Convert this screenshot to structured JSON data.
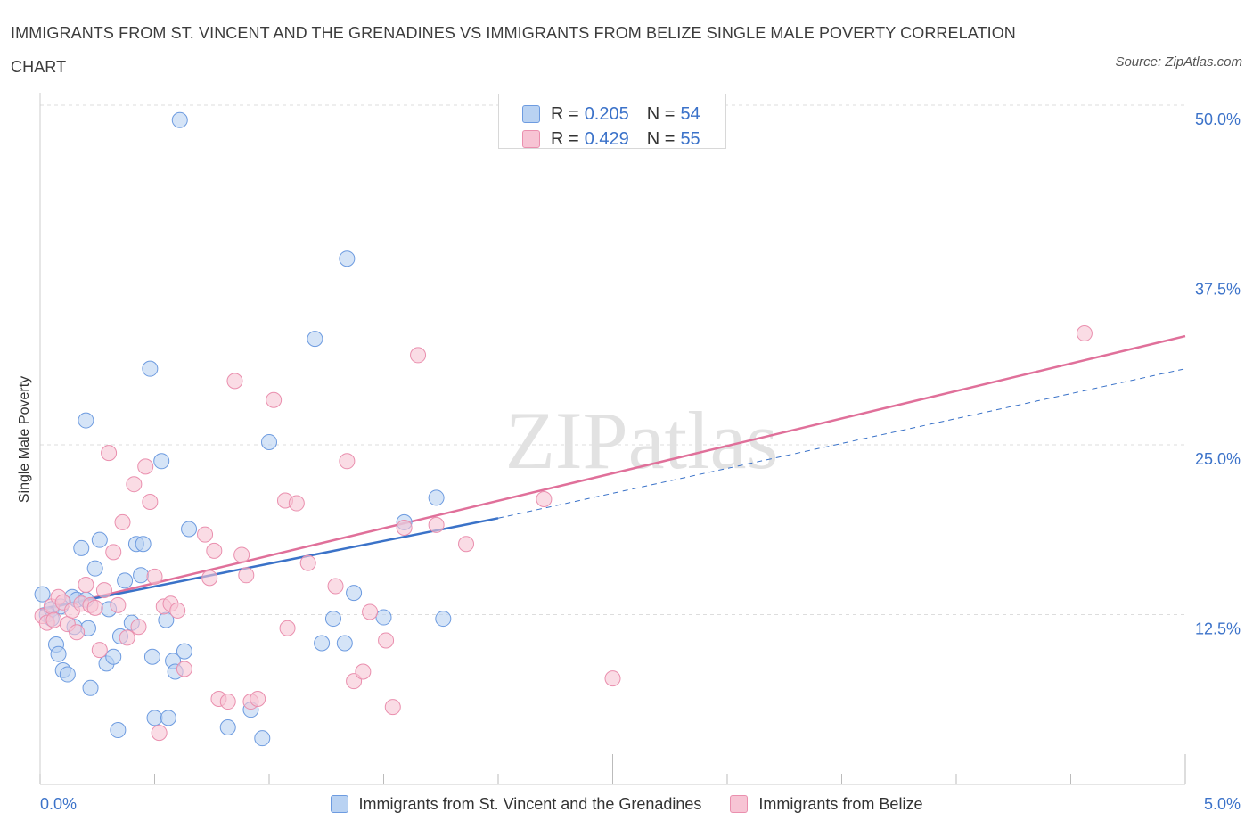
{
  "title": "IMMIGRANTS FROM ST. VINCENT AND THE GRENADINES VS IMMIGRANTS FROM BELIZE SINGLE MALE POVERTY CORRELATION CHART",
  "source": "Source: ZipAtlas.com",
  "watermark": "ZIPatlas",
  "legend_stats": {
    "blue": {
      "r_label": "R =",
      "r_value": "0.205",
      "n_label": "N =",
      "n_value": "54"
    },
    "pink": {
      "r_label": "R =",
      "r_value": "0.429",
      "n_label": "N =",
      "n_value": "55"
    }
  },
  "colors": {
    "blue_fill": "#b9d2f2",
    "blue_stroke": "#6d9be0",
    "blue_line": "#3a72c8",
    "pink_fill": "#f7c4d4",
    "pink_stroke": "#ea8fae",
    "pink_line": "#e0709a",
    "axis_text": "#3b72c9",
    "grid": "#dddddd"
  },
  "chart_data": {
    "type": "scatter",
    "title": "IMMIGRANTS FROM ST. VINCENT AND THE GRENADINES VS IMMIGRANTS FROM BELIZE SINGLE MALE POVERTY CORRELATION CHART",
    "xlabel": "",
    "ylabel": "Single Male Poverty",
    "xlim": [
      0,
      5
    ],
    "ylim": [
      0,
      50
    ],
    "x_tick_labels": [
      "0.0%",
      "5.0%"
    ],
    "y_ticks": [
      12.5,
      25,
      37.5,
      50
    ],
    "y_tick_labels": [
      "12.5%",
      "25.0%",
      "37.5%",
      "50.0%"
    ],
    "grid": "horizontal dashed",
    "legend_position": "bottom",
    "series": [
      {
        "name": "Immigrants from St. Vincent and the Grenadines",
        "color": "blue",
        "points": [
          [
            0.01,
            14.0
          ],
          [
            0.03,
            12.5
          ],
          [
            0.05,
            12.9
          ],
          [
            0.07,
            10.3
          ],
          [
            0.08,
            9.6
          ],
          [
            0.1,
            8.4
          ],
          [
            0.12,
            8.1
          ],
          [
            0.14,
            13.8
          ],
          [
            0.16,
            13.6
          ],
          [
            0.18,
            17.4
          ],
          [
            0.2,
            13.6
          ],
          [
            0.2,
            26.8
          ],
          [
            0.21,
            11.5
          ],
          [
            0.22,
            7.1
          ],
          [
            0.24,
            15.9
          ],
          [
            0.26,
            18.0
          ],
          [
            0.29,
            8.9
          ],
          [
            0.3,
            12.9
          ],
          [
            0.32,
            9.4
          ],
          [
            0.34,
            4.0
          ],
          [
            0.35,
            10.9
          ],
          [
            0.37,
            15.0
          ],
          [
            0.4,
            11.9
          ],
          [
            0.42,
            17.7
          ],
          [
            0.44,
            15.4
          ],
          [
            0.45,
            17.7
          ],
          [
            0.48,
            30.6
          ],
          [
            0.49,
            9.4
          ],
          [
            0.5,
            4.9
          ],
          [
            0.53,
            23.8
          ],
          [
            0.55,
            12.1
          ],
          [
            0.56,
            4.9
          ],
          [
            0.58,
            9.1
          ],
          [
            0.59,
            8.3
          ],
          [
            0.61,
            48.9
          ],
          [
            0.63,
            9.8
          ],
          [
            0.65,
            18.8
          ],
          [
            0.82,
            4.2
          ],
          [
            0.92,
            5.5
          ],
          [
            0.97,
            3.4
          ],
          [
            1.0,
            25.2
          ],
          [
            1.2,
            32.8
          ],
          [
            1.23,
            10.4
          ],
          [
            1.28,
            12.2
          ],
          [
            1.33,
            10.4
          ],
          [
            1.34,
            38.7
          ],
          [
            1.37,
            14.1
          ],
          [
            1.5,
            12.3
          ],
          [
            1.59,
            19.3
          ],
          [
            1.73,
            21.1
          ],
          [
            1.76,
            12.2
          ],
          [
            0.05,
            12.2
          ],
          [
            0.09,
            13.1
          ],
          [
            0.15,
            11.6
          ]
        ]
      },
      {
        "name": "Immigrants from Belize",
        "color": "pink",
        "points": [
          [
            0.01,
            12.4
          ],
          [
            0.03,
            11.9
          ],
          [
            0.05,
            13.1
          ],
          [
            0.06,
            12.1
          ],
          [
            0.08,
            13.8
          ],
          [
            0.1,
            13.4
          ],
          [
            0.12,
            11.8
          ],
          [
            0.14,
            12.8
          ],
          [
            0.16,
            11.2
          ],
          [
            0.18,
            13.3
          ],
          [
            0.2,
            14.7
          ],
          [
            0.22,
            13.2
          ],
          [
            0.24,
            13.0
          ],
          [
            0.26,
            9.9
          ],
          [
            0.28,
            14.3
          ],
          [
            0.3,
            24.4
          ],
          [
            0.32,
            17.1
          ],
          [
            0.34,
            13.2
          ],
          [
            0.36,
            19.3
          ],
          [
            0.38,
            10.8
          ],
          [
            0.41,
            22.1
          ],
          [
            0.43,
            11.6
          ],
          [
            0.46,
            23.4
          ],
          [
            0.48,
            20.8
          ],
          [
            0.5,
            15.3
          ],
          [
            0.52,
            3.8
          ],
          [
            0.54,
            13.1
          ],
          [
            0.57,
            13.3
          ],
          [
            0.6,
            12.8
          ],
          [
            0.63,
            8.5
          ],
          [
            0.72,
            18.4
          ],
          [
            0.74,
            15.2
          ],
          [
            0.76,
            17.2
          ],
          [
            0.78,
            6.3
          ],
          [
            0.82,
            6.1
          ],
          [
            0.85,
            29.7
          ],
          [
            0.88,
            16.9
          ],
          [
            0.9,
            15.4
          ],
          [
            0.92,
            6.1
          ],
          [
            0.95,
            6.3
          ],
          [
            1.02,
            28.3
          ],
          [
            1.07,
            20.9
          ],
          [
            1.08,
            11.5
          ],
          [
            1.12,
            20.7
          ],
          [
            1.17,
            16.3
          ],
          [
            1.29,
            14.6
          ],
          [
            1.34,
            23.8
          ],
          [
            1.37,
            7.6
          ],
          [
            1.41,
            8.3
          ],
          [
            1.44,
            12.7
          ],
          [
            1.51,
            10.6
          ],
          [
            1.54,
            5.7
          ],
          [
            1.59,
            18.9
          ],
          [
            1.65,
            31.6
          ],
          [
            1.73,
            19.1
          ]
        ]
      }
    ],
    "extra_pink_points": [
      [
        1.86,
        17.7
      ],
      [
        2.2,
        21.0
      ],
      [
        2.5,
        7.8
      ],
      [
        4.56,
        33.2
      ]
    ],
    "trend_lines": [
      {
        "series": "Immigrants from St. Vincent and the Grenadines",
        "solid_from": [
          0,
          12.9
        ],
        "solid_to": [
          2.0,
          19.6
        ],
        "dashed_to": [
          5.0,
          30.6
        ]
      },
      {
        "series": "Immigrants from Belize",
        "from": [
          0,
          12.8
        ],
        "to": [
          5.0,
          33.0
        ]
      }
    ]
  },
  "legend_bottom": [
    {
      "label": "Immigrants from St. Vincent and the Grenadines",
      "color": "blue"
    },
    {
      "label": "Immigrants from Belize",
      "color": "pink"
    }
  ]
}
